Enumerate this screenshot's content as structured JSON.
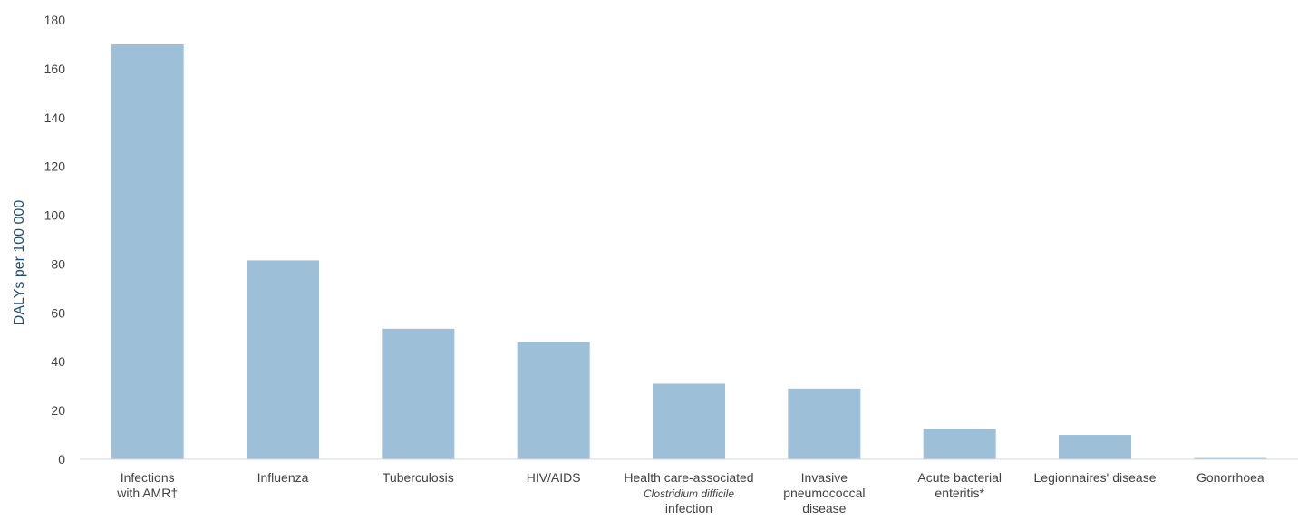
{
  "chart_data": {
    "type": "bar",
    "categories": [
      [
        "Infections",
        "with AMR†"
      ],
      [
        "Influenza"
      ],
      [
        "Tuberculosis"
      ],
      [
        "HIV/AIDS"
      ],
      [
        "Health care-associated",
        "Clostridium difficile",
        "infection"
      ],
      [
        "Invasive",
        "pneumococcal",
        "disease"
      ],
      [
        "Acute bacterial",
        "enteritis*"
      ],
      [
        "Legionnaires' disease"
      ],
      [
        "Gonorrhoea"
      ]
    ],
    "values": [
      170,
      81.5,
      53.5,
      48,
      31,
      29,
      12.5,
      10,
      0.5
    ],
    "title": "",
    "xlabel": "",
    "ylabel": "DALYs per 100 000",
    "ylim": [
      0,
      180
    ],
    "yticks": [
      0,
      20,
      40,
      60,
      80,
      100,
      120,
      140,
      160,
      180
    ],
    "grid": false,
    "bar_color": "#9dbfd7",
    "axis_color": "#d9d9d9",
    "ylabel_color": "#1f4e79"
  }
}
